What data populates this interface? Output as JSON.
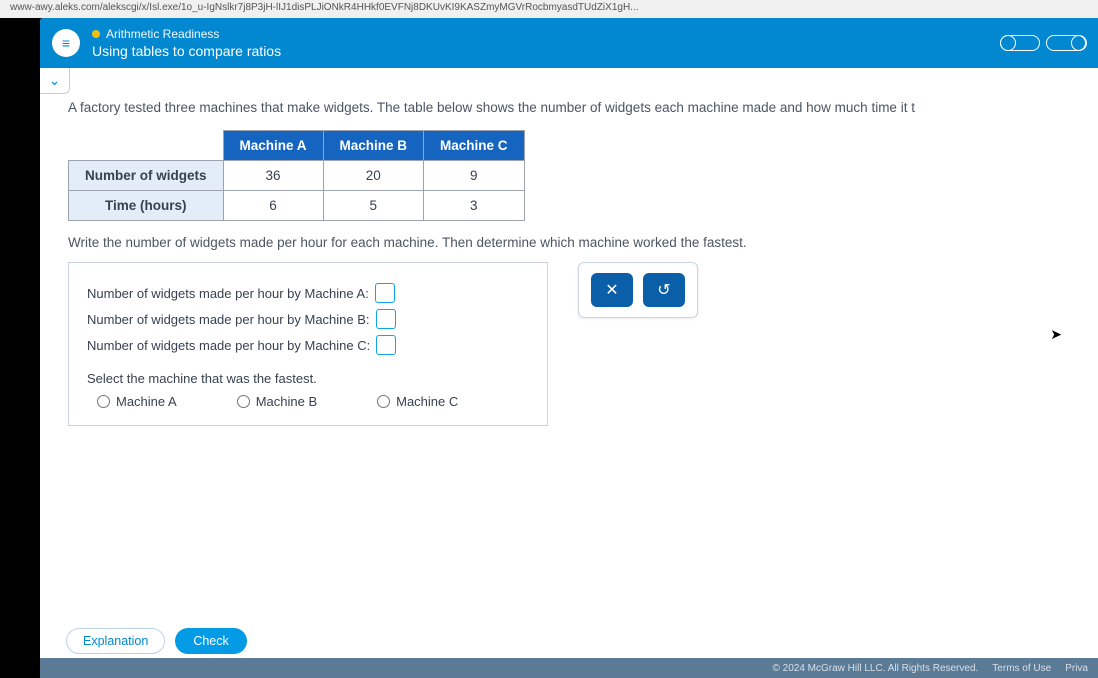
{
  "url_fragment": "www-awy.aleks.com/alekscgi/x/Isl.exe/1o_u-IgNslkr7j8P3jH-lIJ1disPLJiONkR4HHkf0EVFNj8DKUvKI9KASZmyMGVrRocbmyasdTUdZiX1gH...",
  "header": {
    "category": "Arithmetic Readiness",
    "lesson": "Using tables to compare ratios"
  },
  "content": {
    "intro": "A factory tested three machines that make widgets. The table below shows the number of widgets each machine made and how much time it t",
    "table": {
      "col_headers": [
        "Machine A",
        "Machine B",
        "Machine C"
      ],
      "row1_label": "Number of widgets",
      "row1": [
        "36",
        "20",
        "9"
      ],
      "row2_label": "Time (hours)",
      "row2": [
        "6",
        "5",
        "3"
      ]
    },
    "instruction": "Write the number of widgets made per hour for each machine. Then determine which machine worked the fastest.",
    "answers": {
      "a": "Number of widgets made per hour by Machine A:",
      "b": "Number of widgets made per hour by Machine B:",
      "c": "Number of widgets made per hour by Machine C:"
    },
    "select_q": "Select the machine that was the fastest.",
    "options": {
      "a": "Machine A",
      "b": "Machine B",
      "c": "Machine C"
    },
    "toolbox": {
      "clear": "✕",
      "reset": "↺"
    },
    "buttons": {
      "explanation": "Explanation",
      "check": "Check"
    }
  },
  "legal": {
    "copy": "© 2024 McGraw Hill LLC. All Rights Reserved.",
    "terms": "Terms of Use",
    "priv": "Priva"
  }
}
